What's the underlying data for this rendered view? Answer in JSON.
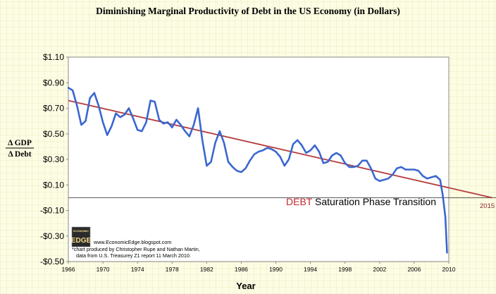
{
  "chart_data": {
    "type": "line",
    "title": "Diminishing Marginal Productivity of Debt in the US Economy  (in Dollars)",
    "xlabel": "Year",
    "ylabel_top": "Δ GDP",
    "ylabel_bottom": "Δ Debt",
    "xlim": [
      1966,
      2010
    ],
    "ylim": [
      -0.5,
      1.1
    ],
    "yticks": [
      1.1,
      0.9,
      0.7,
      0.5,
      0.3,
      0.1,
      -0.1,
      -0.3,
      -0.5
    ],
    "ytick_labels": [
      "$1.10",
      "$0.90",
      "$0.70",
      "$0.50",
      "$0.30",
      "$0.10",
      "-$0.10",
      "-$0.30",
      "-$0.50"
    ],
    "xticks": [
      1966,
      1970,
      1974,
      1978,
      1982,
      1986,
      1990,
      1994,
      1998,
      2002,
      2006,
      2010
    ],
    "xtick_labels": [
      "1966",
      "1970",
      "1974",
      "1978",
      "1982",
      "1986",
      "1990",
      "1994",
      "1998",
      "2002",
      "2006",
      "2010"
    ],
    "grid": false,
    "series": [
      {
        "color": "#3a67cf",
        "x": [
          1966,
          1966.5,
          1967,
          1967.5,
          1968,
          1968.5,
          1969,
          1969.5,
          1970,
          1970.5,
          1971,
          1971.5,
          1972,
          1972.5,
          1973,
          1973.5,
          1974,
          1974.5,
          1975,
          1975.5,
          1976,
          1976.5,
          1977,
          1977.5,
          1978,
          1978.5,
          1979,
          1979.5,
          1980,
          1980.5,
          1981,
          1981.5,
          1982,
          1982.5,
          1983,
          1983.5,
          1984,
          1984.5,
          1985,
          1985.5,
          1986,
          1986.5,
          1987,
          1987.5,
          1988,
          1988.5,
          1989,
          1989.5,
          1990,
          1990.5,
          1991,
          1991.5,
          1992,
          1992.5,
          1993,
          1993.5,
          1994,
          1994.5,
          1995,
          1995.5,
          1996,
          1996.5,
          1997,
          1997.5,
          1998,
          1998.5,
          1999,
          1999.5,
          2000,
          2000.5,
          2001,
          2001.5,
          2002,
          2002.5,
          2003,
          2003.5,
          2004,
          2004.5,
          2005,
          2005.5,
          2006,
          2006.5,
          2007,
          2007.5,
          2008,
          2008.5,
          2009,
          2009.3,
          2009.6,
          2009.8
        ],
        "values": [
          0.86,
          0.84,
          0.72,
          0.57,
          0.6,
          0.78,
          0.82,
          0.72,
          0.59,
          0.49,
          0.56,
          0.66,
          0.63,
          0.65,
          0.7,
          0.62,
          0.53,
          0.52,
          0.59,
          0.76,
          0.75,
          0.61,
          0.58,
          0.59,
          0.55,
          0.61,
          0.57,
          0.52,
          0.48,
          0.57,
          0.7,
          0.45,
          0.25,
          0.28,
          0.43,
          0.52,
          0.43,
          0.28,
          0.24,
          0.21,
          0.2,
          0.23,
          0.29,
          0.34,
          0.36,
          0.37,
          0.39,
          0.38,
          0.36,
          0.32,
          0.25,
          0.3,
          0.42,
          0.45,
          0.41,
          0.35,
          0.37,
          0.41,
          0.36,
          0.27,
          0.28,
          0.33,
          0.35,
          0.33,
          0.27,
          0.24,
          0.24,
          0.25,
          0.29,
          0.29,
          0.23,
          0.15,
          0.13,
          0.14,
          0.15,
          0.18,
          0.23,
          0.24,
          0.22,
          0.22,
          0.22,
          0.21,
          0.17,
          0.15,
          0.16,
          0.17,
          0.14,
          0.02,
          -0.15,
          -0.43
        ]
      },
      {
        "color": "#b43a3a",
        "x": [
          1966,
          2015
        ],
        "values": [
          0.76,
          0.0
        ]
      }
    ],
    "annotations": {
      "phase_red": "DEBT",
      "phase_rest": " Saturation Phase Transition",
      "year_2015": "2015",
      "credit_line1": "www.EconomicEdge.blogspot.com",
      "credit_line2": "*chart produced by Christopher Rupe and Nathan Martin,",
      "credit_line3": "data from U.S. Treasurey Z1 report 11 March 2010.",
      "logo_top": "ECONOMIC",
      "logo_main": "EDGE"
    }
  }
}
